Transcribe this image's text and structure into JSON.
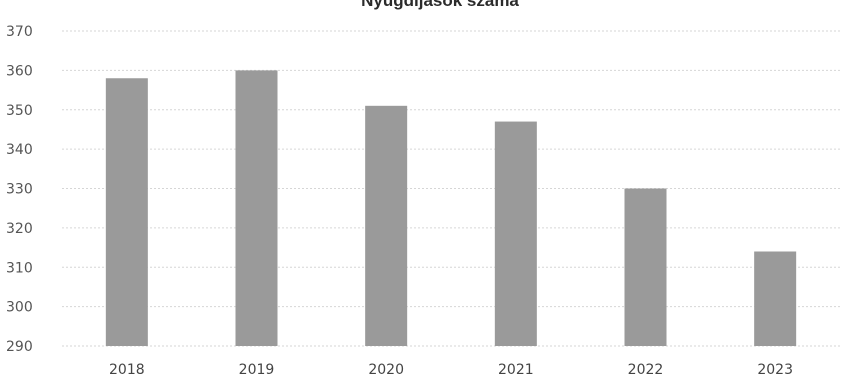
{
  "chart_data": {
    "type": "bar",
    "title": "Nyugdíjasok száma",
    "xlabel": "",
    "ylabel": "",
    "categories": [
      "2018",
      "2019",
      "2020",
      "2021",
      "2022",
      "2023"
    ],
    "values": [
      358,
      360,
      351,
      347,
      330,
      314
    ],
    "ylim": [
      290,
      370
    ],
    "yticks": [
      "370",
      "360",
      "350",
      "340",
      "330",
      "320",
      "310",
      "300",
      "290"
    ],
    "grid": true,
    "legend": "none",
    "bar_color": "#9a9a9a"
  }
}
